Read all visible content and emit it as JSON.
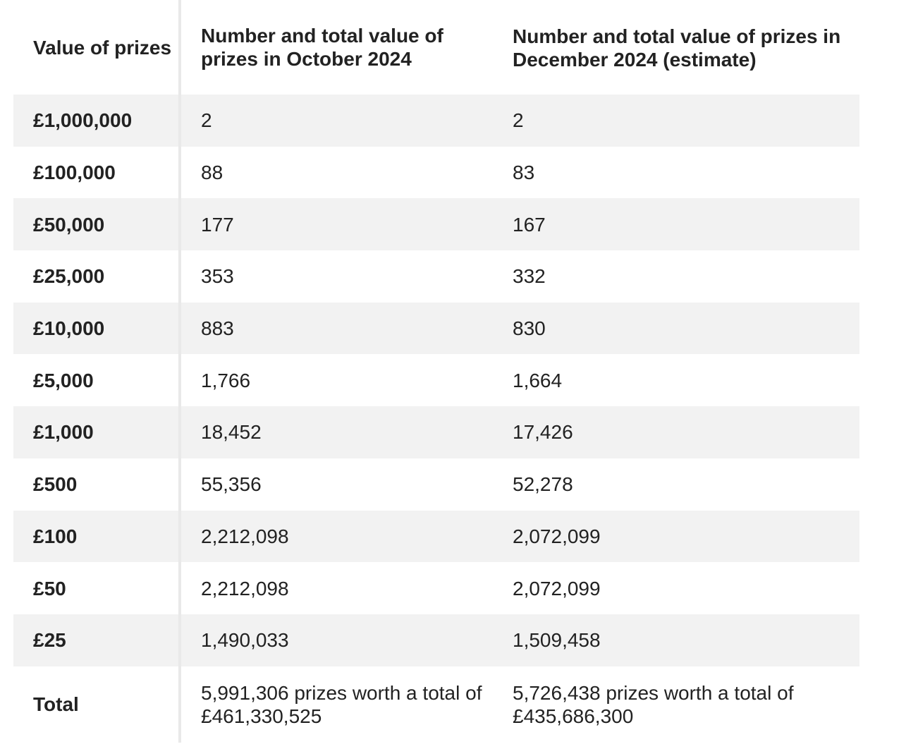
{
  "table": {
    "headers": [
      "Value of prizes",
      "Number and total value of prizes in October 2024",
      "Number and total value of prizes in December 2024 (estimate)"
    ],
    "rows": [
      {
        "value": "£1,000,000",
        "oct": "2",
        "dec": "2"
      },
      {
        "value": "£100,000",
        "oct": "88",
        "dec": "83"
      },
      {
        "value": "£50,000",
        "oct": "177",
        "dec": "167"
      },
      {
        "value": "£25,000",
        "oct": "353",
        "dec": "332"
      },
      {
        "value": "£10,000",
        "oct": "883",
        "dec": "830"
      },
      {
        "value": "£5,000",
        "oct": "1,766",
        "dec": "1,664"
      },
      {
        "value": "£1,000",
        "oct": "18,452",
        "dec": "17,426"
      },
      {
        "value": "£500",
        "oct": "55,356",
        "dec": "52,278"
      },
      {
        "value": "£100",
        "oct": "2,212,098",
        "dec": "2,072,099"
      },
      {
        "value": "£50",
        "oct": "2,212,098",
        "dec": "2,072,099"
      },
      {
        "value": "£25",
        "oct": "1,490,033",
        "dec": "1,509,458"
      }
    ],
    "total": {
      "label": "Total",
      "oct": "5,991,306 prizes worth a total of £461,330,525",
      "dec": "5,726,438 prizes worth a total of £435,686,300"
    }
  }
}
